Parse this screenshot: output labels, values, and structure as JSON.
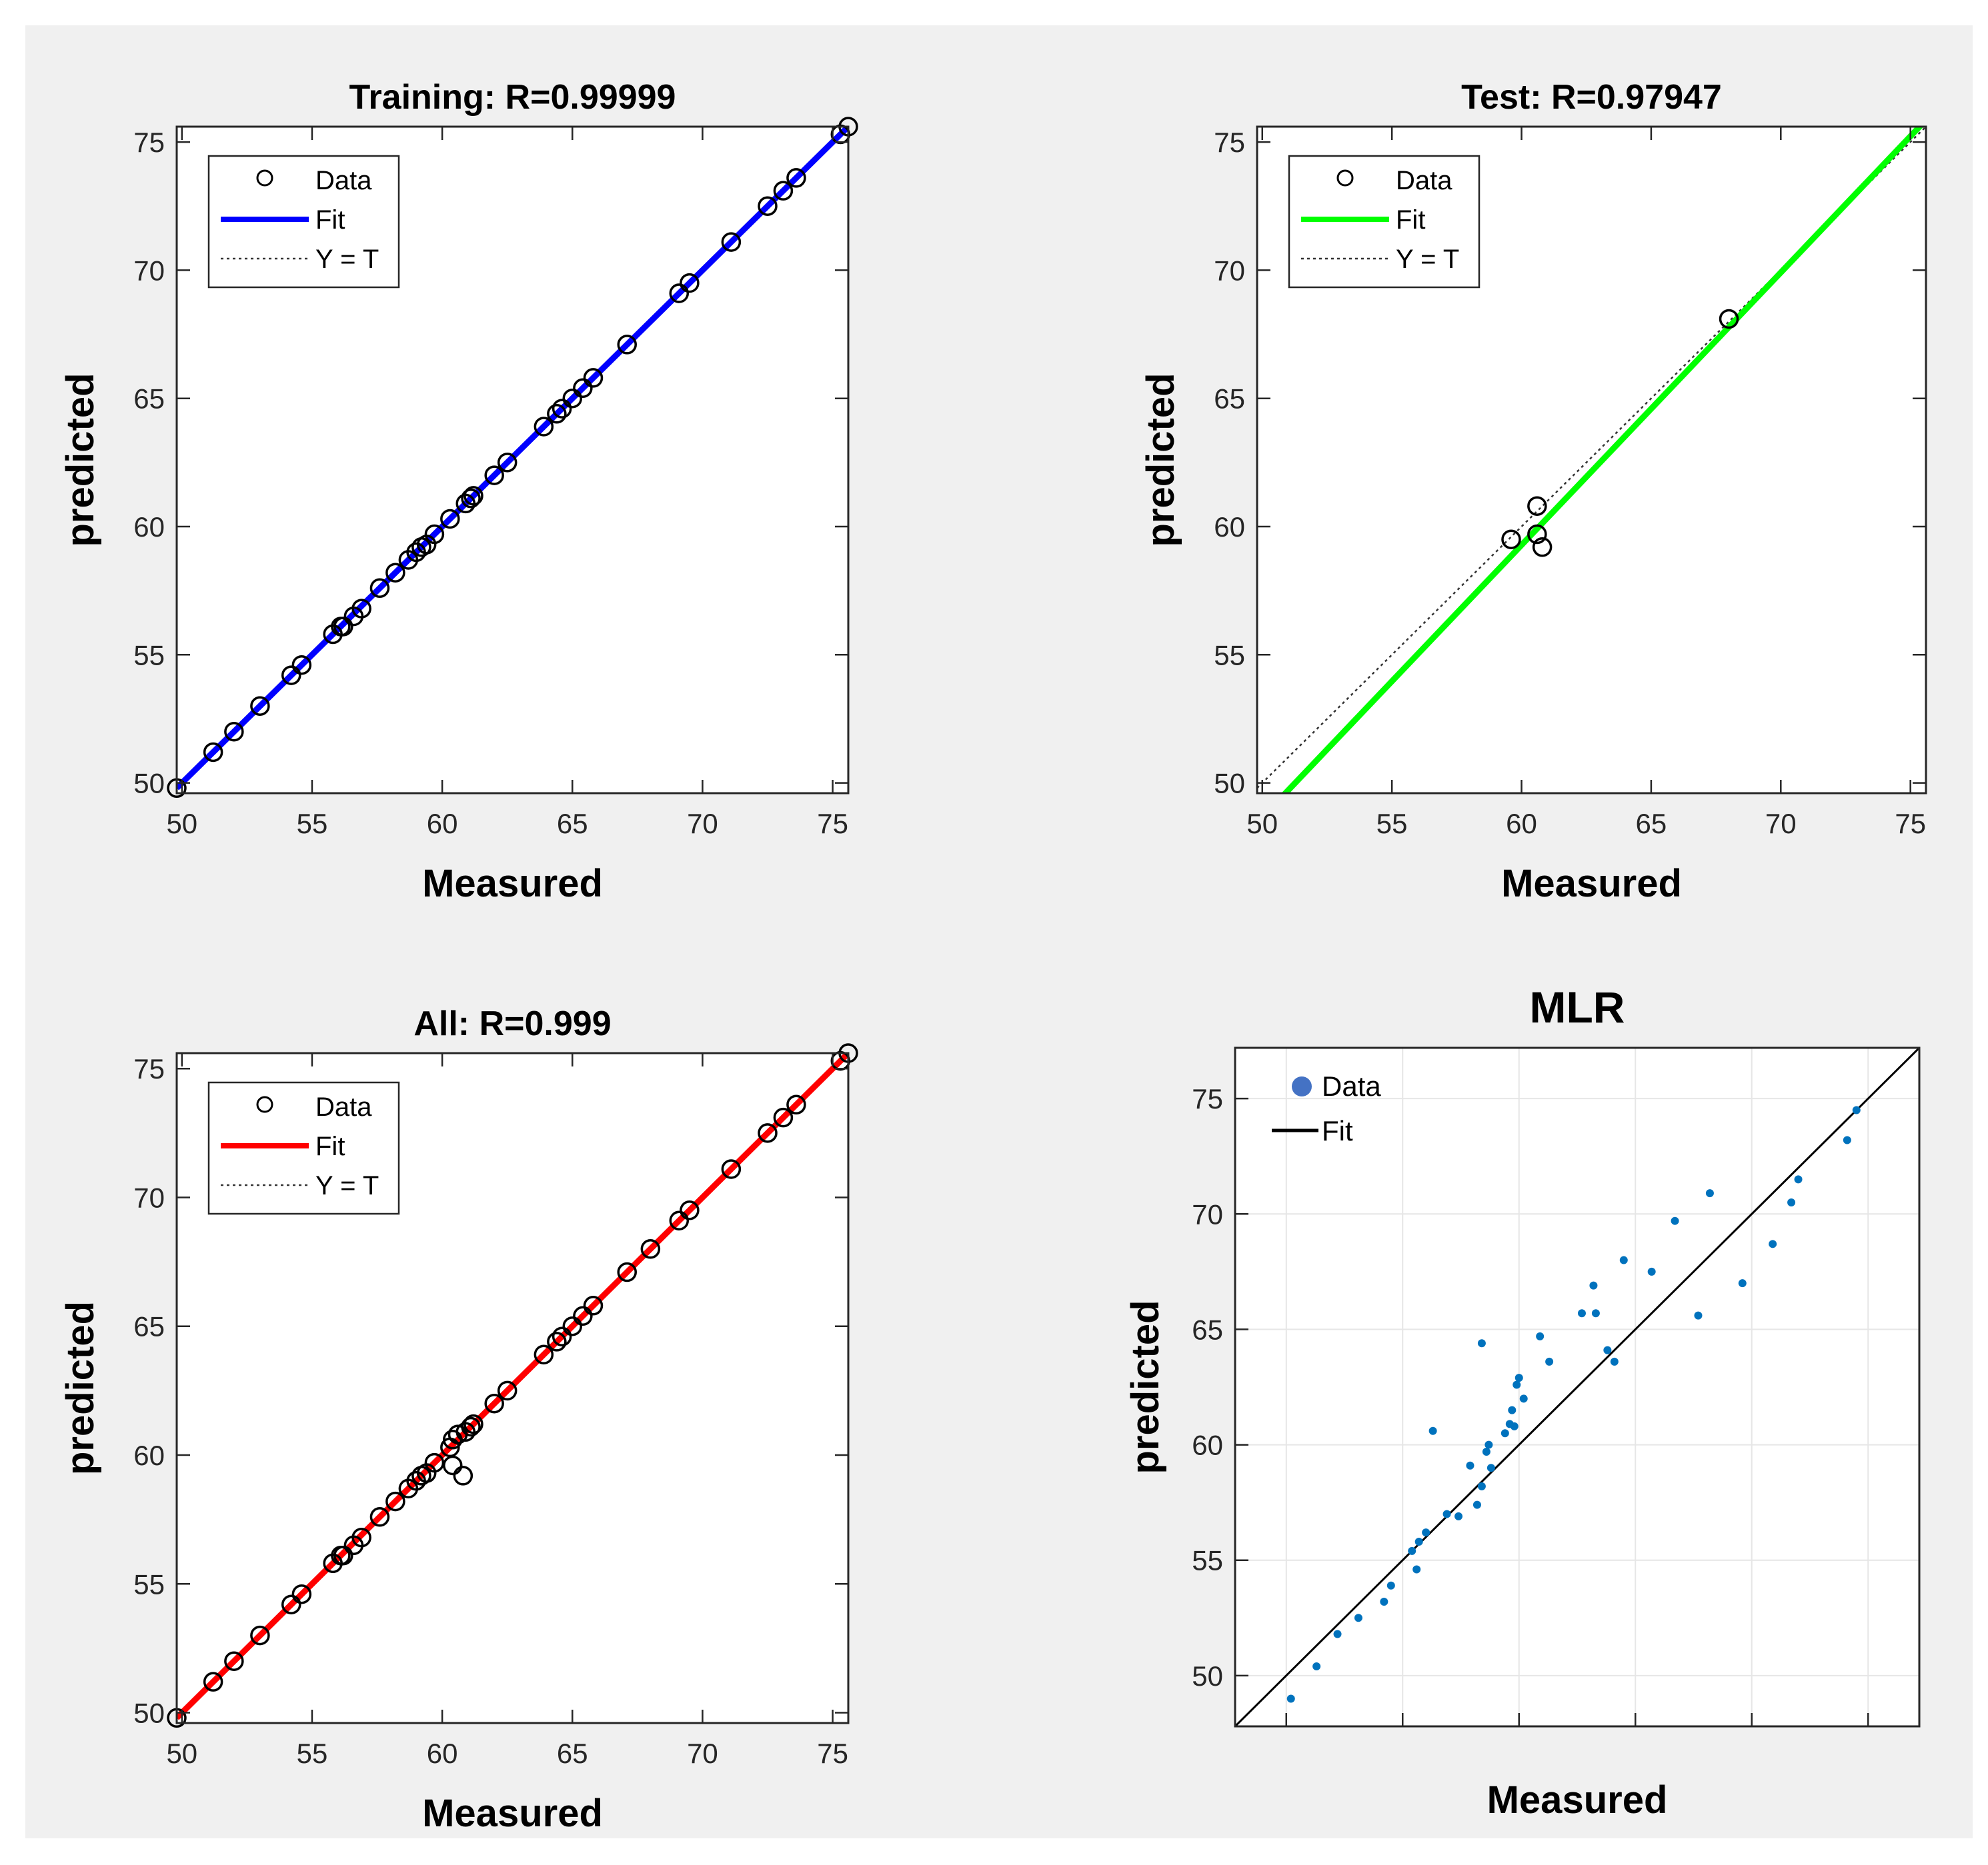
{
  "figure": {
    "colors": {
      "background": "#f0f0f0",
      "axes": "#ffffff",
      "axis_line": "#262626",
      "tick_label": "#262626",
      "grid": "#e6e6e6"
    }
  },
  "chart_data": [
    {
      "id": "training",
      "type": "scatter",
      "title": "Training: R=0.99999",
      "xlabel": "Measured",
      "ylabel": "predicted",
      "xlim": [
        49.8,
        75.6
      ],
      "ylim": [
        49.6,
        75.6
      ],
      "xticks": [
        50,
        55,
        60,
        65,
        70,
        75
      ],
      "yticks": [
        50,
        55,
        60,
        65,
        70,
        75
      ],
      "grid": false,
      "legend_position": "top-left",
      "legend": [
        "Data",
        "Fit",
        "Y = T"
      ],
      "fit_color": "#0000ff",
      "fit_line": {
        "slope": 1.0,
        "intercept": 0.0
      },
      "identity_line": true,
      "points": [
        [
          49.8,
          49.8
        ],
        [
          51.2,
          51.2
        ],
        [
          52.0,
          52.0
        ],
        [
          53.0,
          53.0
        ],
        [
          54.2,
          54.2
        ],
        [
          54.6,
          54.6
        ],
        [
          55.8,
          55.8
        ],
        [
          56.1,
          56.1
        ],
        [
          56.2,
          56.1
        ],
        [
          56.6,
          56.5
        ],
        [
          56.9,
          56.8
        ],
        [
          57.6,
          57.6
        ],
        [
          58.2,
          58.2
        ],
        [
          58.7,
          58.7
        ],
        [
          59.0,
          59.0
        ],
        [
          59.2,
          59.2
        ],
        [
          59.4,
          59.3
        ],
        [
          59.7,
          59.7
        ],
        [
          60.3,
          60.3
        ],
        [
          60.9,
          60.9
        ],
        [
          61.1,
          61.1
        ],
        [
          61.2,
          61.2
        ],
        [
          62.0,
          62.0
        ],
        [
          62.5,
          62.5
        ],
        [
          63.9,
          63.9
        ],
        [
          64.4,
          64.4
        ],
        [
          64.6,
          64.6
        ],
        [
          65.0,
          65.0
        ],
        [
          65.4,
          65.4
        ],
        [
          65.8,
          65.8
        ],
        [
          67.1,
          67.1
        ],
        [
          69.1,
          69.1
        ],
        [
          69.5,
          69.5
        ],
        [
          71.1,
          71.1
        ],
        [
          72.5,
          72.5
        ],
        [
          73.1,
          73.1
        ],
        [
          73.6,
          73.6
        ],
        [
          75.3,
          75.3
        ],
        [
          75.6,
          75.6
        ]
      ]
    },
    {
      "id": "test",
      "type": "scatter",
      "title": "Test: R=0.97947",
      "xlabel": "Measured",
      "ylabel": "predicted",
      "xlim": [
        49.8,
        75.6
      ],
      "ylim": [
        49.6,
        75.6
      ],
      "xticks": [
        50,
        55,
        60,
        65,
        70,
        75
      ],
      "yticks": [
        50,
        55,
        60,
        65,
        70,
        75
      ],
      "grid": false,
      "legend_position": "top-left",
      "legend": [
        "Data",
        "Fit",
        "Y = T"
      ],
      "fit_color": "#00ff00",
      "fit_line": {
        "slope": 1.063,
        "intercept": -4.5
      },
      "identity_line": true,
      "points": [
        [
          59.6,
          59.5
        ],
        [
          60.6,
          60.8
        ],
        [
          60.6,
          59.7
        ],
        [
          60.8,
          59.2
        ],
        [
          68.0,
          68.1
        ]
      ]
    },
    {
      "id": "all",
      "type": "scatter",
      "title": "All: R=0.999",
      "xlabel": "Measured",
      "ylabel": "predicted",
      "xlim": [
        49.8,
        75.6
      ],
      "ylim": [
        49.6,
        75.6
      ],
      "xticks": [
        50,
        55,
        60,
        65,
        70,
        75
      ],
      "yticks": [
        50,
        55,
        60,
        65,
        70,
        75
      ],
      "grid": false,
      "legend_position": "top-left",
      "legend": [
        "Data",
        "Fit",
        "Y = T"
      ],
      "fit_color": "#ff0000",
      "fit_line": {
        "slope": 1.0,
        "intercept": 0.0
      },
      "identity_line": true,
      "points": [
        [
          49.8,
          49.8
        ],
        [
          51.2,
          51.2
        ],
        [
          52.0,
          52.0
        ],
        [
          53.0,
          53.0
        ],
        [
          54.2,
          54.2
        ],
        [
          54.6,
          54.6
        ],
        [
          55.8,
          55.8
        ],
        [
          56.1,
          56.1
        ],
        [
          56.2,
          56.1
        ],
        [
          56.6,
          56.5
        ],
        [
          56.9,
          56.8
        ],
        [
          57.6,
          57.6
        ],
        [
          58.2,
          58.2
        ],
        [
          58.7,
          58.7
        ],
        [
          59.0,
          59.0
        ],
        [
          59.2,
          59.2
        ],
        [
          59.4,
          59.3
        ],
        [
          59.7,
          59.7
        ],
        [
          60.3,
          60.3
        ],
        [
          60.9,
          60.9
        ],
        [
          61.1,
          61.1
        ],
        [
          61.2,
          61.2
        ],
        [
          62.0,
          62.0
        ],
        [
          62.5,
          62.5
        ],
        [
          63.9,
          63.9
        ],
        [
          64.4,
          64.4
        ],
        [
          64.6,
          64.6
        ],
        [
          65.0,
          65.0
        ],
        [
          65.4,
          65.4
        ],
        [
          65.8,
          65.8
        ],
        [
          67.1,
          67.1
        ],
        [
          68.0,
          68.0
        ],
        [
          69.1,
          69.1
        ],
        [
          69.5,
          69.5
        ],
        [
          71.1,
          71.1
        ],
        [
          72.5,
          72.5
        ],
        [
          73.1,
          73.1
        ],
        [
          73.6,
          73.6
        ],
        [
          75.3,
          75.3
        ],
        [
          75.6,
          75.6
        ],
        [
          60.4,
          60.6
        ],
        [
          60.6,
          60.8
        ],
        [
          60.4,
          59.6
        ],
        [
          60.8,
          59.2
        ]
      ]
    },
    {
      "id": "mlr",
      "type": "scatter",
      "title": "MLR",
      "xlabel": "Measured",
      "ylabel": "predicted",
      "xlim": [
        47.8,
        77.2
      ],
      "ylim": [
        47.8,
        77.2
      ],
      "xticks": [
        50,
        55,
        60,
        65,
        70,
        75
      ],
      "yticks": [
        50,
        55,
        60,
        65,
        70,
        75
      ],
      "show_xtick_labels": false,
      "grid": true,
      "legend_position": "top-left",
      "legend": [
        "Data",
        "Fit"
      ],
      "marker_color": "#0072bd",
      "legend_marker_color": "#4472c4",
      "fit_color": "#000000",
      "fit_line": {
        "slope": 1.0,
        "intercept": 0.0
      },
      "identity_line": false,
      "points": [
        [
          50.2,
          49.0
        ],
        [
          51.3,
          50.4
        ],
        [
          52.2,
          51.8
        ],
        [
          53.1,
          52.5
        ],
        [
          54.2,
          53.2
        ],
        [
          54.5,
          53.9
        ],
        [
          55.4,
          55.4
        ],
        [
          55.7,
          55.8
        ],
        [
          55.6,
          54.6
        ],
        [
          56.0,
          56.2
        ],
        [
          56.3,
          60.6
        ],
        [
          56.9,
          57.0
        ],
        [
          57.4,
          56.9
        ],
        [
          57.9,
          59.1
        ],
        [
          58.2,
          57.4
        ],
        [
          58.4,
          58.2
        ],
        [
          58.4,
          64.4
        ],
        [
          58.6,
          59.7
        ],
        [
          58.7,
          60.0
        ],
        [
          58.8,
          59.0
        ],
        [
          59.4,
          60.5
        ],
        [
          59.6,
          60.9
        ],
        [
          59.7,
          61.5
        ],
        [
          59.8,
          60.8
        ],
        [
          59.9,
          62.6
        ],
        [
          60.0,
          62.9
        ],
        [
          60.2,
          62.0
        ],
        [
          60.9,
          64.7
        ],
        [
          61.3,
          63.6
        ],
        [
          62.7,
          65.7
        ],
        [
          63.2,
          66.9
        ],
        [
          63.3,
          65.7
        ],
        [
          63.8,
          64.1
        ],
        [
          64.1,
          63.6
        ],
        [
          64.5,
          68.0
        ],
        [
          65.7,
          67.5
        ],
        [
          66.7,
          69.7
        ],
        [
          67.7,
          65.6
        ],
        [
          68.2,
          70.9
        ],
        [
          69.6,
          67.0
        ],
        [
          70.9,
          68.7
        ],
        [
          71.7,
          70.5
        ],
        [
          72.0,
          71.5
        ],
        [
          74.1,
          73.2
        ],
        [
          74.5,
          74.5
        ]
      ]
    }
  ]
}
